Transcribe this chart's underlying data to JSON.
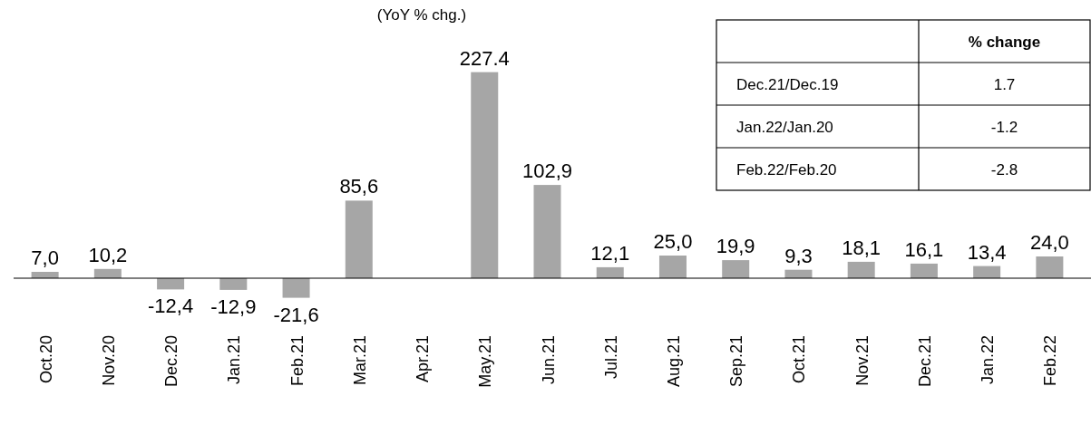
{
  "chart_data": {
    "type": "bar",
    "title": "(YoY % chg.)",
    "categories": [
      "Oct.20",
      "Nov.20",
      "Dec.20",
      "Jan.21",
      "Feb.21",
      "Mar.21",
      "Apr.21",
      "May.21",
      "Jun.21",
      "Jul.21",
      "Aug.21",
      "Sep.21",
      "Oct.21",
      "Nov.21",
      "Dec.21",
      "Jan.22",
      "Feb.22"
    ],
    "values": [
      7.0,
      10.2,
      -12.4,
      -12.9,
      -21.6,
      85.6,
      null,
      227.4,
      102.9,
      12.1,
      25.0,
      19.9,
      9.3,
      18.1,
      16.1,
      13.4,
      24.0
    ],
    "value_labels": [
      "7,0",
      "10,2",
      "-12,4",
      "-12,9",
      "-21,6",
      "85,6",
      null,
      "227.4",
      "102,9",
      "12,1",
      "25,0",
      "19,9",
      "9,3",
      "18,1",
      "16,1",
      "13,4",
      "24,0"
    ],
    "color": "#a6a6a6",
    "annotations": [
      "% change",
      "Dec.21/Dec.19",
      "1.7",
      "Jan.22/Jan.20",
      "-1.2",
      "Feb.22/Feb.20",
      "-2.8"
    ]
  }
}
